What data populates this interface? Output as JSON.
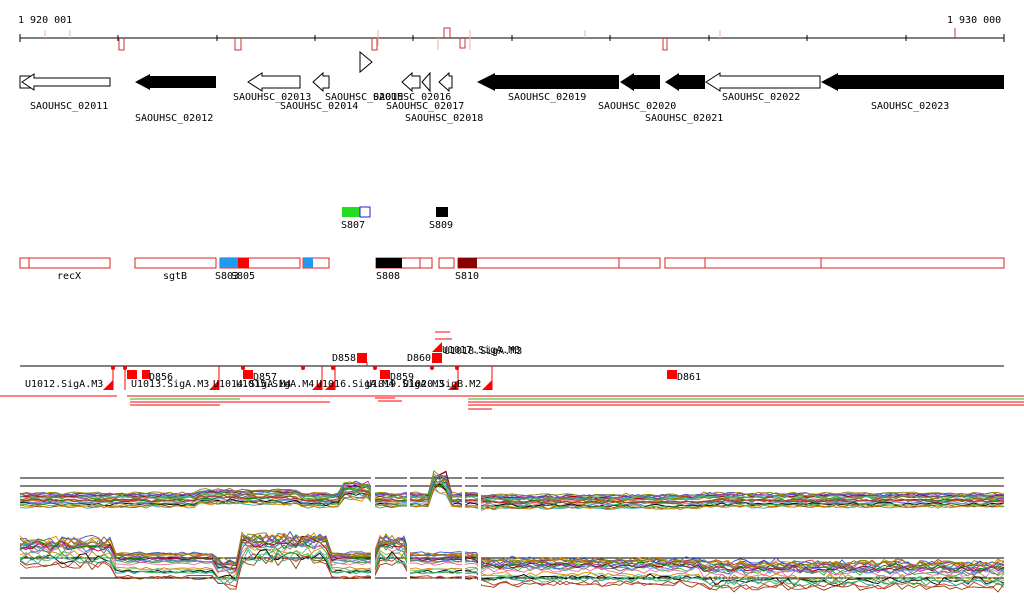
{
  "ruler": {
    "start_label": "1 920 001",
    "end_label": "1 930 000"
  },
  "genes": [
    {
      "label": "SAOUHSC_02011"
    },
    {
      "label": "SAOUHSC_02012"
    },
    {
      "label": "SAOUHSC_02013"
    },
    {
      "label": "SAOUHSC_02014"
    },
    {
      "label": "SAOUHSC_02015"
    },
    {
      "label": "SAOUHSC_02016"
    },
    {
      "label": "SAOUHSC_02017"
    },
    {
      "label": "SAOUHSC_02018"
    },
    {
      "label": "SAOUHSC_02019"
    },
    {
      "label": "SAOUHSC_02020"
    },
    {
      "label": "SAOUHSC_02021"
    },
    {
      "label": "SAOUHSC_02022"
    },
    {
      "label": "SAOUHSC_02023"
    }
  ],
  "segments_upper": [
    {
      "label": "S807",
      "color": "#22dd22"
    },
    {
      "label": "S809",
      "color": "#000000"
    }
  ],
  "segments_main": [
    {
      "label": "recX"
    },
    {
      "label": "sgtB"
    },
    {
      "label": "S803"
    },
    {
      "label": "S805"
    },
    {
      "label": "S808"
    },
    {
      "label": "S810"
    }
  ],
  "downregulated": [
    {
      "label": "D858"
    },
    {
      "label": "D860"
    },
    {
      "label": "D856"
    },
    {
      "label": "D857"
    },
    {
      "label": "D859"
    },
    {
      "label": "D861"
    }
  ],
  "upregulated": [
    {
      "label": "U1017.SigA.M3"
    },
    {
      "label": "U1018.SigA.M3"
    },
    {
      "label": "U1012.SigA.M3"
    },
    {
      "label": "U1013.SigA.M3"
    },
    {
      "label": "U1014.SigA.M4"
    },
    {
      "label": "U1015.SigA.M4"
    },
    {
      "label": "U1016.SigA.M4"
    },
    {
      "label": "U1019.SigA.M3"
    },
    {
      "label": "U1020.SigB.M2"
    }
  ],
  "colors": {
    "accent": "#ff0000",
    "dark_red": "#880000",
    "blue": "#2299ee",
    "gene_fill": "#000000",
    "axis": "#000000"
  }
}
